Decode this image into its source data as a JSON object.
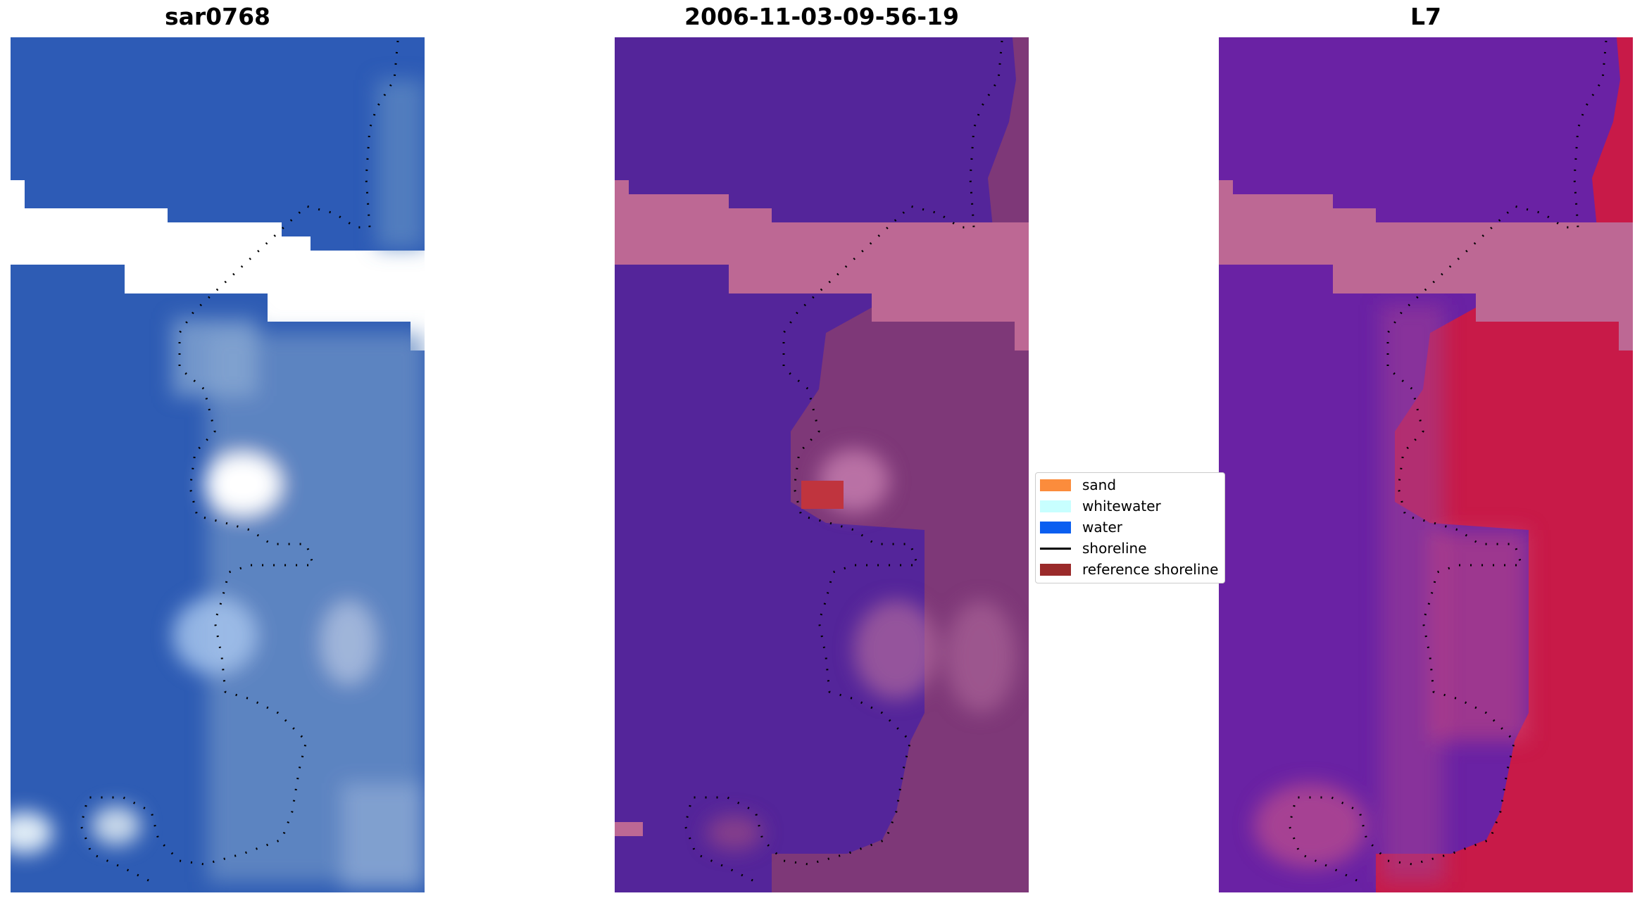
{
  "panels": [
    {
      "title": "sar0768",
      "kind": "rgb"
    },
    {
      "title": "2006-11-03-09-56-19",
      "kind": "classified"
    },
    {
      "title": "L7",
      "kind": "index"
    }
  ],
  "legend": {
    "items": [
      {
        "label": "sand",
        "color": "#fb8c3c",
        "type": "patch"
      },
      {
        "label": "whitewater",
        "color": "#c8ffff",
        "type": "patch"
      },
      {
        "label": "water",
        "color": "#0a5ef0",
        "type": "patch"
      },
      {
        "label": "shoreline",
        "color": "#000000",
        "type": "line"
      },
      {
        "label": "reference shoreline",
        "color": "#9a2a2a",
        "type": "patch"
      }
    ]
  },
  "colors": {
    "rgb_water": "#2c5cb8",
    "rgb_land": "#6c90c8",
    "rgb_whitewater": "#f2f4f4",
    "class_water": "#54259a",
    "class_land": "#7e3878",
    "class_nodata": "#bd6894",
    "class_reference": "#c0343e",
    "index_water": "#6a22a4",
    "index_land": "#c81a48",
    "index_nodata": "#bd6894"
  }
}
